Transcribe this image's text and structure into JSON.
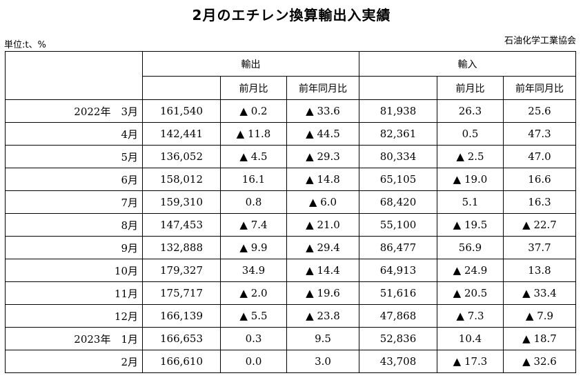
{
  "title": "2月のエチレン換算輸出入実績",
  "unit": "単位:t、%",
  "source": "石油化学工業協会",
  "headers": {
    "export": "輸出",
    "import": "輸入",
    "mom": "前月比",
    "yoy": "前年同月比"
  },
  "rows": [
    {
      "period": "2022年　3月",
      "exp": "161,540",
      "exp_mom": "▲ 0.2",
      "exp_yoy": "▲ 33.6",
      "imp": "81,938",
      "imp_mom": "26.3",
      "imp_yoy": "25.6"
    },
    {
      "period": "4月",
      "exp": "142,441",
      "exp_mom": "▲ 11.8",
      "exp_yoy": "▲ 44.5",
      "imp": "82,361",
      "imp_mom": "0.5",
      "imp_yoy": "47.3"
    },
    {
      "period": "5月",
      "exp": "136,052",
      "exp_mom": "▲ 4.5",
      "exp_yoy": "▲ 29.3",
      "imp": "80,334",
      "imp_mom": "▲ 2.5",
      "imp_yoy": "47.0"
    },
    {
      "period": "6月",
      "exp": "158,012",
      "exp_mom": "16.1",
      "exp_yoy": "▲ 14.8",
      "imp": "65,105",
      "imp_mom": "▲ 19.0",
      "imp_yoy": "16.6"
    },
    {
      "period": "7月",
      "exp": "159,310",
      "exp_mom": "0.8",
      "exp_yoy": "▲ 6.0",
      "imp": "68,420",
      "imp_mom": "5.1",
      "imp_yoy": "16.3"
    },
    {
      "period": "8月",
      "exp": "147,453",
      "exp_mom": "▲ 7.4",
      "exp_yoy": "▲ 21.0",
      "imp": "55,100",
      "imp_mom": "▲ 19.5",
      "imp_yoy": "▲ 22.7"
    },
    {
      "period": "9月",
      "exp": "132,888",
      "exp_mom": "▲ 9.9",
      "exp_yoy": "▲ 29.4",
      "imp": "86,477",
      "imp_mom": "56.9",
      "imp_yoy": "37.7"
    },
    {
      "period": "10月",
      "exp": "179,327",
      "exp_mom": "34.9",
      "exp_yoy": "▲ 14.4",
      "imp": "64,913",
      "imp_mom": "▲ 24.9",
      "imp_yoy": "13.8"
    },
    {
      "period": "11月",
      "exp": "175,717",
      "exp_mom": "▲ 2.0",
      "exp_yoy": "▲ 19.6",
      "imp": "51,616",
      "imp_mom": "▲ 20.5",
      "imp_yoy": "▲ 33.4"
    },
    {
      "period": "12月",
      "exp": "166,139",
      "exp_mom": "▲ 5.5",
      "exp_yoy": "▲ 23.8",
      "imp": "47,868",
      "imp_mom": "▲ 7.3",
      "imp_yoy": "▲ 7.9"
    },
    {
      "period": "2023年　1月",
      "exp": "166,653",
      "exp_mom": "0.3",
      "exp_yoy": "9.5",
      "imp": "52,836",
      "imp_mom": "10.4",
      "imp_yoy": "▲ 18.7"
    },
    {
      "period": "2月",
      "exp": "166,610",
      "exp_mom": "0.0",
      "exp_yoy": "3.0",
      "imp": "43,708",
      "imp_mom": "▲ 17.3",
      "imp_yoy": "▲ 32.6"
    }
  ]
}
